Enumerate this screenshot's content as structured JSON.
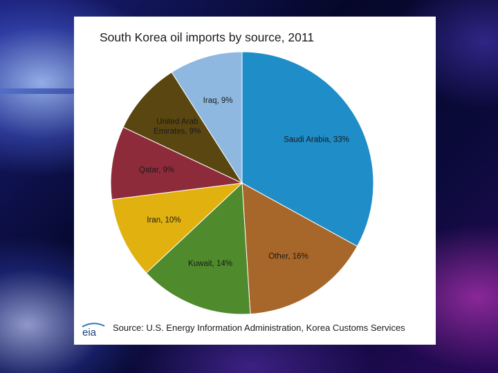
{
  "chart_data": {
    "type": "pie",
    "title": "South Korea oil imports by source, 2011",
    "categories": [
      "Saudi Arabia",
      "Other",
      "Kuwait",
      "Iran",
      "Qatar",
      "United Arab Emirates",
      "Iraq"
    ],
    "values": [
      33,
      16,
      14,
      10,
      9,
      9,
      9
    ],
    "labels": [
      "Saudi Arabia, 33%",
      "Other, 16%",
      "Kuwait, 14%",
      "Iran, 10%",
      "Qatar, 9%",
      "United Arab\nEmirates, 9%",
      "Iraq, 9%"
    ],
    "colors": [
      "#1f8dc8",
      "#a8672a",
      "#4f8a2c",
      "#e1b10f",
      "#8e2b3b",
      "#5a4610",
      "#8fb8e0"
    ],
    "start_angle_deg": 0,
    "direction": "clockwise"
  },
  "source": {
    "logo_text": "eia",
    "text": "Source: U.S. Energy Information Administration, Korea Customs Services"
  }
}
